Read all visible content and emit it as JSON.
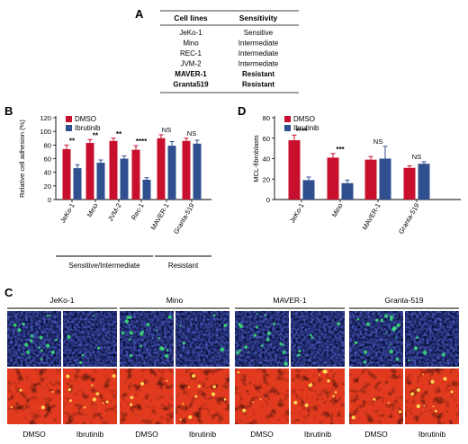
{
  "panels": {
    "A": "A",
    "B": "B",
    "C": "C",
    "D": "D"
  },
  "table": {
    "headers": [
      "Cell lines",
      "Sensitivity"
    ],
    "rows": [
      {
        "cell": "JeKo-1",
        "sensitivity": "Sensitive",
        "bold": false
      },
      {
        "cell": "Mino",
        "sensitivity": "Intermediate",
        "bold": false
      },
      {
        "cell": "REC-1",
        "sensitivity": "Intermediate",
        "bold": false
      },
      {
        "cell": "JVM-2",
        "sensitivity": "Intermediate",
        "bold": false
      },
      {
        "cell": "MAVER-1",
        "sensitivity": "Resistant",
        "bold": true
      },
      {
        "cell": "Granta519",
        "sensitivity": "Resistant",
        "bold": true
      }
    ]
  },
  "colors": {
    "dmso": "#c8102e",
    "ibrutinib": "#2f4f8f"
  },
  "chart_data": [
    {
      "type": "bar",
      "ylabel": "Relative cell adhesion (%)",
      "ylim": [
        0,
        120
      ],
      "yticks": [
        0,
        20,
        40,
        60,
        80,
        100,
        120
      ],
      "categories": [
        "JeKo-1",
        "Mino",
        "JVM-2",
        "Rec-1",
        "MAVER-1",
        "Granta-519"
      ],
      "series": [
        {
          "name": "DMSO",
          "values": [
            74,
            83,
            86,
            73,
            90,
            86
          ],
          "errors": [
            6,
            5,
            4,
            6,
            5,
            4
          ]
        },
        {
          "name": "Ibrutinib",
          "values": [
            46,
            54,
            60,
            29,
            79,
            82
          ],
          "errors": [
            5,
            4,
            4,
            3,
            6,
            5
          ]
        }
      ],
      "significance": [
        "**",
        "**",
        "**",
        "****",
        "NS",
        "NS"
      ],
      "groups": [
        {
          "label": "Sensitive/Intermediate",
          "from": 0,
          "to": 3
        },
        {
          "label": "Resistant",
          "from": 4,
          "to": 5
        }
      ],
      "legend": "top-left"
    },
    {
      "type": "bar",
      "ylabel": "MCL-fibroblasts",
      "ylim": [
        0,
        80
      ],
      "yticks": [
        0,
        20,
        40,
        60,
        80
      ],
      "categories": [
        "JeKo-1",
        "Mino",
        "MAVER-1",
        "Granta-519"
      ],
      "series": [
        {
          "name": "DMSO",
          "values": [
            58,
            41,
            39,
            31
          ],
          "errors": [
            5,
            4,
            3,
            2
          ]
        },
        {
          "name": "Ibrutinib",
          "values": [
            19,
            16,
            40,
            35
          ],
          "errors": [
            3,
            3,
            12,
            2
          ]
        }
      ],
      "significance": [
        "****",
        "***",
        "NS",
        "NS"
      ],
      "legend": "top-left"
    }
  ],
  "micrographs": {
    "cell_lines": [
      "JeKo-1",
      "Mino",
      "MAVER-1",
      "Granta-519"
    ],
    "treatments": [
      "DMSO",
      "Ibrutinib"
    ]
  }
}
